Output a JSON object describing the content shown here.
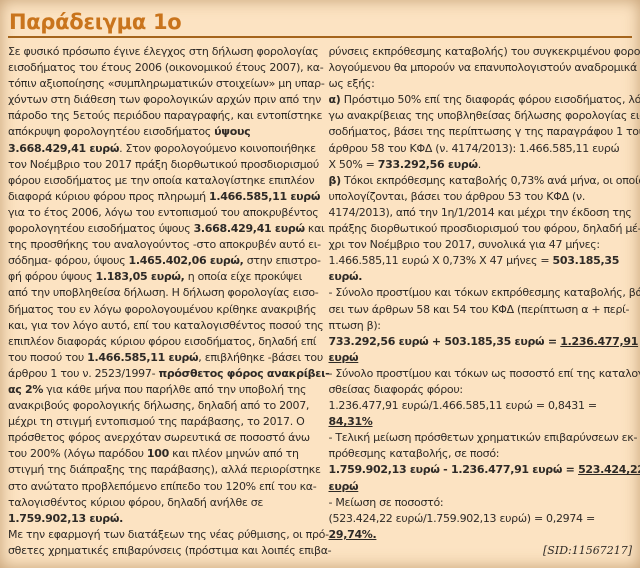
{
  "meta": {
    "title_label": "Παράδειγμα 1ο",
    "sid": "[SID:11567217]"
  },
  "colors": {
    "background": "#fce3c2",
    "title": "#c9741c",
    "rule": "#a5651c",
    "text": "#2e2a26"
  },
  "columns": {
    "left": {
      "lines": [
        {
          "segs": [
            {
              "t": "Σε φυσικό πρόσωπο έγινε έλεγχος στη δήλωση φορολογίας"
            }
          ]
        },
        {
          "segs": [
            {
              "t": "εισοδήματος του έτους 2006 (οικονομικού έτους 2007), κα-"
            }
          ]
        },
        {
          "segs": [
            {
              "t": "τόπιν αξιοποίησης «συμπληρωματικών στοιχείων» μη υπαρ-"
            }
          ]
        },
        {
          "segs": [
            {
              "t": "χόντων στη διάθεση των φορολογικών αρχών πριν από την"
            }
          ]
        },
        {
          "segs": [
            {
              "t": "πάροδο της 5ετούς περιόδου παραγραφής, και εντοπίστηκε"
            }
          ]
        },
        {
          "segs": [
            {
              "t": "απόκρυψη φορολογητέου εισοδήματος "
            },
            {
              "t": "ύψους",
              "b": true
            }
          ]
        },
        {
          "segs": [
            {
              "t": "3.668.429,41 ευρώ",
              "b": true
            },
            {
              "t": ". Στον φορολογούμενο κοινοποιήθηκε"
            }
          ]
        },
        {
          "segs": [
            {
              "t": "τον Νοέμβριο του 2017 πράξη διορθωτικού προσδιορισμού"
            }
          ]
        },
        {
          "segs": [
            {
              "t": "φόρου εισοδήματος με την οποία καταλογίστηκε επιπλέον"
            }
          ]
        },
        {
          "segs": [
            {
              "t": "διαφορά κύριου φόρου προς πληρωμή "
            },
            {
              "t": "1.466.585,11 ευρώ",
              "b": true
            }
          ]
        },
        {
          "segs": [
            {
              "t": "για το έτος 2006, λόγω του εντοπισμού του αποκρυβέντος"
            }
          ]
        },
        {
          "segs": [
            {
              "t": "φορολογητέου εισοδήματος ύψους "
            },
            {
              "t": "3.668.429,41 ευρώ",
              "b": true
            },
            {
              "t": " και"
            }
          ]
        },
        {
          "segs": [
            {
              "t": "της προσθήκης του αναλογούντος -στο αποκρυβέν αυτό ει-"
            }
          ]
        },
        {
          "segs": [
            {
              "t": "σόδημα- φόρου, ύψους "
            },
            {
              "t": "1.465.402,06 ευρώ,",
              "b": true
            },
            {
              "t": " στην επιστρο-"
            }
          ]
        },
        {
          "segs": [
            {
              "t": "φή φόρου ύψους "
            },
            {
              "t": "1.183,05 ευρώ,",
              "b": true
            },
            {
              "t": " η οποία είχε προκύψει"
            }
          ]
        },
        {
          "segs": [
            {
              "t": "από την υποβληθείσα δήλωση. Η δήλωση φορολογίας εισο-"
            }
          ]
        },
        {
          "segs": [
            {
              "t": "δήματος του εν λόγω φορολογουμένου κρίθηκε ανακριβής"
            }
          ]
        },
        {
          "segs": [
            {
              "t": "και, για τον λόγο αυτό, επί του καταλογισθέντος ποσού της"
            }
          ]
        },
        {
          "segs": [
            {
              "t": "επιπλέον διαφοράς κύριου φόρου εισοδήματος, δηλαδή επί"
            }
          ]
        },
        {
          "segs": [
            {
              "t": "του ποσού του "
            },
            {
              "t": "1.466.585,11 ευρώ",
              "b": true
            },
            {
              "t": ", επιβλήθηκε -βάσει του"
            }
          ]
        },
        {
          "segs": [
            {
              "t": "άρθρου 1 του ν. 2523/1997- "
            },
            {
              "t": "πρόσθετος φόρος ανακρίβει-",
              "b": true
            }
          ]
        },
        {
          "segs": [
            {
              "t": "ας 2%",
              "b": true
            },
            {
              "t": " για κάθε μήνα που παρήλθε από την υποβολή της"
            }
          ]
        },
        {
          "segs": [
            {
              "t": "ανακριβούς φορολογικής δήλωσης, δηλαδή από το 2007,"
            }
          ]
        },
        {
          "segs": [
            {
              "t": "μέχρι τη στιγμή εντοπισμού της παράβασης, το 2017. Ο"
            }
          ]
        },
        {
          "segs": [
            {
              "t": "πρόσθετος φόρος ανερχόταν σωρευτικά σε ποσοστό άνω"
            }
          ]
        },
        {
          "segs": [
            {
              "t": "του 200% (λόγω παρόδου "
            },
            {
              "t": "100",
              "b": true
            },
            {
              "t": " και πλέον μηνών από τη"
            }
          ]
        },
        {
          "segs": [
            {
              "t": "στιγμή της διάπραξης της παράβασης), αλλά περιορίστηκε"
            }
          ]
        },
        {
          "segs": [
            {
              "t": "στο ανώτατο προβλεπόμενο επίπεδο του 120% επί του κα-"
            }
          ]
        },
        {
          "segs": [
            {
              "t": "ταλογισθέντος κύριου φόρου, δηλαδή ανήλθε σε"
            }
          ]
        },
        {
          "segs": [
            {
              "t": "1.759.902,13 ευρώ.",
              "b": true
            }
          ]
        },
        {
          "segs": [
            {
              "t": "Με την εφαρμογή των διατάξεων της νέας ρύθμισης, οι πρό-"
            }
          ]
        },
        {
          "segs": [
            {
              "t": "σθετες χρηματικές επιβαρύνσεις (πρόστιμα και λοιπές επιβα-"
            }
          ]
        }
      ]
    },
    "right": {
      "lines": [
        {
          "segs": [
            {
              "t": "ρύνσεις εκπρόθεσμης καταβολής) του συγκεκριμένου φορο-"
            }
          ]
        },
        {
          "segs": [
            {
              "t": "λογούμενου θα μπορούν να επανυπολογιστούν αναδρομικά"
            }
          ]
        },
        {
          "segs": [
            {
              "t": "ως εξής:"
            }
          ]
        },
        {
          "segs": [
            {
              "t": "α)",
              "b": true
            },
            {
              "t": " Πρόστιμο 50% επί της διαφοράς φόρου εισοδήματος, λό-"
            }
          ]
        },
        {
          "segs": [
            {
              "t": "γω ανακρίβειας της υποβληθείσας δήλωσης φορολογίας ει-"
            }
          ]
        },
        {
          "segs": [
            {
              "t": "σοδήματος, βάσει της περίπτωσης γ της παραγράφου 1 του"
            }
          ]
        },
        {
          "segs": [
            {
              "t": "άρθρου 58 του ΚΦΔ (ν. 4174/2013): 1.466.585,11 ευρώ"
            }
          ]
        },
        {
          "segs": [
            {
              "t": "Χ 50% = "
            },
            {
              "t": "733.292,56 ευρώ",
              "b": true
            },
            {
              "t": "."
            }
          ]
        },
        {
          "segs": [
            {
              "t": "β)",
              "b": true
            },
            {
              "t": " Τόκοι εκπρόθεσμης καταβολής 0,73% ανά μήνα, οι οποίοι"
            }
          ]
        },
        {
          "segs": [
            {
              "t": "υπολογίζονται, βάσει του άρθρου 53 του ΚΦΔ (ν."
            }
          ]
        },
        {
          "segs": [
            {
              "t": "4174/2013), από την 1η/1/2014 και μέχρι την έκδοση της"
            }
          ]
        },
        {
          "segs": [
            {
              "t": "πράξης διορθωτικού προσδιορισμού του φόρου, δηλαδή μέ-"
            }
          ]
        },
        {
          "segs": [
            {
              "t": "χρι τον Νοέμβριο του 2017, συνολικά για 47 μήνες:"
            }
          ]
        },
        {
          "segs": [
            {
              "t": "1.466.585,11 ευρώ Χ 0,73% Χ 47 μήνες = "
            },
            {
              "t": "503.185,35",
              "b": true
            }
          ]
        },
        {
          "segs": [
            {
              "t": "ευρώ.",
              "b": true
            }
          ]
        },
        {
          "segs": [
            {
              "t": "- Σύνολο προστίμου και τόκων εκπρόθεσμης καταβολής, βά-"
            }
          ]
        },
        {
          "segs": [
            {
              "t": "σει των άρθρων 58 και 54 του ΚΦΔ (περίπτωση α + περί-"
            }
          ]
        },
        {
          "segs": [
            {
              "t": "πτωση β):"
            }
          ]
        },
        {
          "segs": [
            {
              "t": "733.292,56 ευρώ + 503.185,35 ευρώ = ",
              "b": true
            },
            {
              "t": "1.236.477,91",
              "b": true,
              "u": true
            }
          ]
        },
        {
          "segs": [
            {
              "t": "ευρώ",
              "b": true,
              "u": true
            }
          ]
        },
        {
          "segs": [
            {
              "t": "- Σύνολο προστίμου και τόκων ως ποσοστό επί της καταλογι-"
            }
          ]
        },
        {
          "segs": [
            {
              "t": "σθείσας διαφοράς φόρου:"
            }
          ]
        },
        {
          "segs": [
            {
              "t": "1.236.477,91 ευρώ/1.466.585,11 ευρώ = 0,8431 ="
            }
          ]
        },
        {
          "segs": [
            {
              "t": "84,31%",
              "b": true,
              "u": true
            }
          ]
        },
        {
          "segs": [
            {
              "t": "- Τελική μείωση πρόσθετων χρηματικών επιβαρύνσεων εκ-"
            }
          ]
        },
        {
          "segs": [
            {
              "t": "πρόθεσμης καταβολής, σε ποσό:"
            }
          ]
        },
        {
          "segs": [
            {
              "t": "1.759.902,13 ευρώ - 1.236.477,91 ευρώ = ",
              "b": true
            },
            {
              "t": "523.424,22",
              "b": true,
              "u": true
            }
          ]
        },
        {
          "segs": [
            {
              "t": "ευρώ",
              "b": true,
              "u": true
            }
          ]
        },
        {
          "segs": [
            {
              "t": "- Μείωση σε ποσοστό:"
            }
          ]
        },
        {
          "segs": [
            {
              "t": " (523.424,22 ευρώ/1.759.902,13 ευρώ) = 0,2974 ="
            }
          ]
        },
        {
          "segs": [
            {
              "t": "29,74%.",
              "b": true,
              "u": true
            }
          ]
        },
        {
          "align": "right",
          "serif": true,
          "segs": [
            {
              "t": "[SID:11567217]"
            }
          ]
        }
      ]
    }
  }
}
